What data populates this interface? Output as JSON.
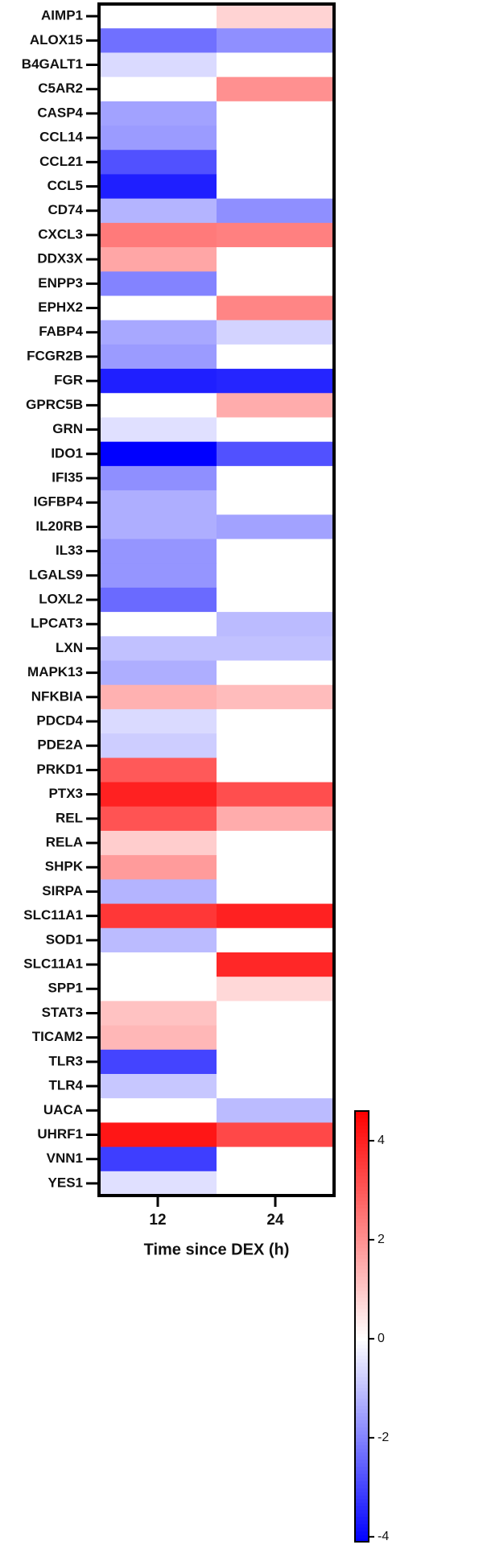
{
  "chart_data": {
    "type": "heatmap",
    "x_label": "Time since DEX (h)",
    "columns": [
      "12",
      "24"
    ],
    "rows": [
      "AIMP1",
      "ALOX15",
      "B4GALT1",
      "C5AR2",
      "CASP4",
      "CCL14",
      "CCL21",
      "CCL5",
      "CD74",
      "CXCL3",
      "DDX3X",
      "ENPP3",
      "EPHX2",
      "FABP4",
      "FCGR2B",
      "FGR",
      "GPRC5B",
      "GRN",
      "IDO1",
      "IFI35",
      "IGFBP4",
      "IL20RB",
      "IL33",
      "LGALS9",
      "LOXL2",
      "LPCAT3",
      "LXN",
      "MAPK13",
      "NFKBIA",
      "PDCD4",
      "PDE2A",
      "PRKD1",
      "PTX3",
      "REL",
      "RELA",
      "SHPK",
      "SIRPA",
      "SLC11A1",
      "SOD1",
      "SLC11A1",
      "SPP1",
      "STAT3",
      "TICAM2",
      "TLR3",
      "TLR4",
      "UACA",
      "UHRF1",
      "VNN1",
      "YES1"
    ],
    "values": [
      [
        0,
        0.8
      ],
      [
        -2.3,
        -1.8
      ],
      [
        -0.6,
        0
      ],
      [
        0,
        2.0
      ],
      [
        -1.5,
        0
      ],
      [
        -1.6,
        0
      ],
      [
        -2.8,
        0
      ],
      [
        -3.6,
        0
      ],
      [
        -1.2,
        -1.8
      ],
      [
        2.4,
        2.3
      ],
      [
        1.6,
        0
      ],
      [
        -2.0,
        0
      ],
      [
        0,
        2.2
      ],
      [
        -1.4,
        -0.7
      ],
      [
        -1.6,
        0
      ],
      [
        -3.6,
        -3.5
      ],
      [
        0,
        1.5
      ],
      [
        -0.5,
        0
      ],
      [
        -4.1,
        -2.8
      ],
      [
        -1.8,
        0
      ],
      [
        -1.3,
        0
      ],
      [
        -1.3,
        -1.5
      ],
      [
        -1.7,
        0
      ],
      [
        -1.7,
        0
      ],
      [
        -2.4,
        0
      ],
      [
        0,
        -1.1
      ],
      [
        -1.0,
        -1.0
      ],
      [
        -1.3,
        0
      ],
      [
        1.4,
        1.2
      ],
      [
        -0.6,
        0
      ],
      [
        -0.8,
        0
      ],
      [
        3.0,
        0
      ],
      [
        4.0,
        3.2
      ],
      [
        3.1,
        1.5
      ],
      [
        0.9,
        0
      ],
      [
        1.8,
        0
      ],
      [
        -1.2,
        0
      ],
      [
        3.6,
        4.0
      ],
      [
        -1.1,
        0
      ],
      [
        0,
        3.9
      ],
      [
        0,
        0.7
      ],
      [
        1.1,
        0
      ],
      [
        1.3,
        0
      ],
      [
        -3.0,
        0
      ],
      [
        -0.9,
        0
      ],
      [
        0,
        -1.1
      ],
      [
        4.2,
        3.3
      ],
      [
        -3.1,
        0
      ],
      [
        -0.5,
        0
      ]
    ],
    "zlim": [
      -4.1,
      4.6
    ],
    "zticks": [
      -4,
      -2,
      0,
      2,
      4
    ],
    "colors": {
      "low": "#0000ff",
      "mid": "#ffffff",
      "high": "#ff0000"
    }
  }
}
